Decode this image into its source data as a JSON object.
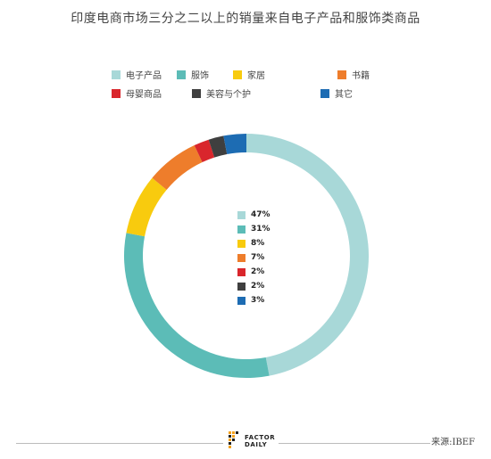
{
  "chart_data": {
    "type": "pie",
    "title": "印度电商市场三分之二以上的销量来自电子产品和服饰类商品",
    "style": "donut",
    "categories": [
      "电子产品",
      "服饰",
      "家居",
      "书籍",
      "母婴商品",
      "美容与个护",
      "其它"
    ],
    "values": [
      47,
      31,
      8,
      7,
      2,
      2,
      3
    ],
    "value_labels": [
      "47%",
      "31%",
      "8%",
      "7%",
      "2%",
      "2%",
      "3%"
    ],
    "colors": [
      "#a8d8d8",
      "#5cbcb7",
      "#f8cb0e",
      "#ee7d2b",
      "#d9262c",
      "#3f3f3f",
      "#1d6cb3"
    ],
    "legend_position": "top"
  },
  "footer": {
    "logo_line1": "FACTOR",
    "logo_line2": "DAILY",
    "source": "来源:IBEF"
  }
}
